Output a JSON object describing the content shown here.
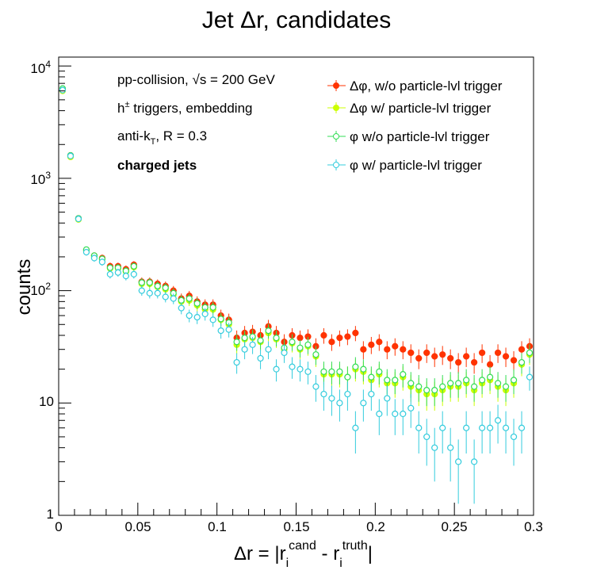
{
  "chart_data": {
    "type": "scatter",
    "title": "Jet Δr, candidates",
    "xlabel": "Δr = |r_i^cand - r_i^truth|",
    "ylabel": "counts",
    "xlim": [
      0,
      0.3
    ],
    "ylim": [
      1,
      12000
    ],
    "yscale": "log",
    "x_tick_labels": [
      "0",
      "0.05",
      "0.1",
      "0.15",
      "0.2",
      "0.25",
      "0.3"
    ],
    "y_tick_labels": [
      "1",
      "10",
      "10^2",
      "10^3",
      "10^4"
    ],
    "annotations": [
      "pp-collision, √s = 200 GeV",
      "h± triggers, embedding",
      "anti-kT, R = 0.3",
      "charged jets"
    ],
    "legend_position": "top-right",
    "x": [
      0.0025,
      0.0075,
      0.0125,
      0.0175,
      0.0225,
      0.0275,
      0.0325,
      0.0375,
      0.0425,
      0.0475,
      0.0525,
      0.0575,
      0.0625,
      0.0675,
      0.0725,
      0.0775,
      0.0825,
      0.0875,
      0.0925,
      0.0975,
      0.1025,
      0.1075,
      0.1125,
      0.1175,
      0.1225,
      0.1275,
      0.1325,
      0.1375,
      0.1425,
      0.1475,
      0.1525,
      0.1575,
      0.1625,
      0.1675,
      0.1725,
      0.1775,
      0.1825,
      0.1875,
      0.1925,
      0.1975,
      0.2025,
      0.2075,
      0.2125,
      0.2175,
      0.2225,
      0.2275,
      0.2325,
      0.2375,
      0.2425,
      0.2475,
      0.2525,
      0.2575,
      0.2625,
      0.2675,
      0.2725,
      0.2775,
      0.2825,
      0.2875,
      0.2925,
      0.2975
    ],
    "series": [
      {
        "name": "Δφ, w/o particle-lvl trigger",
        "color": "#ff3300",
        "marker": "filled-circle",
        "values": [
          6200,
          1600,
          440,
          230,
          205,
          195,
          165,
          165,
          155,
          170,
          120,
          120,
          115,
          110,
          100,
          85,
          90,
          80,
          75,
          75,
          60,
          55,
          38,
          42,
          43,
          40,
          48,
          42,
          35,
          40,
          38,
          39,
          32,
          40,
          35,
          38,
          39,
          42,
          30,
          33,
          35,
          30,
          32,
          30,
          28,
          25,
          28,
          26,
          27,
          25,
          23,
          26,
          23,
          28,
          22,
          28,
          26,
          24,
          30,
          32
        ]
      },
      {
        "name": "Δφ w/ particle-lvl trigger",
        "color": "#ccff00",
        "marker": "filled-circle",
        "values": [
          6000,
          1550,
          430,
          225,
          200,
          190,
          158,
          158,
          148,
          162,
          115,
          115,
          108,
          103,
          92,
          80,
          82,
          74,
          68,
          68,
          55,
          50,
          33,
          37,
          38,
          35,
          42,
          37,
          30,
          34,
          30,
          32,
          26,
          18,
          18,
          18,
          17,
          20,
          19,
          16,
          18,
          15,
          15,
          17,
          14,
          13,
          12,
          12,
          13,
          14,
          14,
          15,
          13,
          15,
          16,
          14,
          13,
          15,
          22,
          27
        ]
      },
      {
        "name": "φ w/o particle-lvl trigger",
        "color": "#33dd55",
        "marker": "open-circle",
        "values": [
          6300,
          1600,
          440,
          232,
          205,
          192,
          160,
          160,
          150,
          165,
          118,
          118,
          110,
          106,
          95,
          82,
          85,
          77,
          71,
          71,
          56,
          52,
          35,
          38,
          39,
          36,
          44,
          38,
          31,
          35,
          31,
          33,
          27,
          19,
          19,
          19,
          17,
          21,
          20,
          17,
          19,
          16,
          16,
          18,
          15,
          14,
          13,
          13,
          14,
          15,
          15,
          16,
          14,
          16,
          17,
          15,
          14,
          16,
          23,
          28
        ]
      },
      {
        "name": "φ w/ particle-lvl trigger",
        "color": "#33ccdd",
        "marker": "open-circle",
        "values": [
          6100,
          1580,
          435,
          220,
          195,
          180,
          140,
          145,
          135,
          140,
          100,
          95,
          95,
          88,
          85,
          70,
          60,
          58,
          62,
          55,
          44,
          45,
          23,
          30,
          33,
          25,
          30,
          20,
          28,
          21,
          20,
          19,
          14,
          12,
          11,
          10,
          12,
          6,
          10,
          12,
          8,
          11,
          8,
          8,
          9,
          6,
          5,
          4,
          6,
          4,
          3,
          6,
          3,
          6,
          6,
          7,
          6,
          5,
          6,
          17
        ]
      }
    ]
  }
}
